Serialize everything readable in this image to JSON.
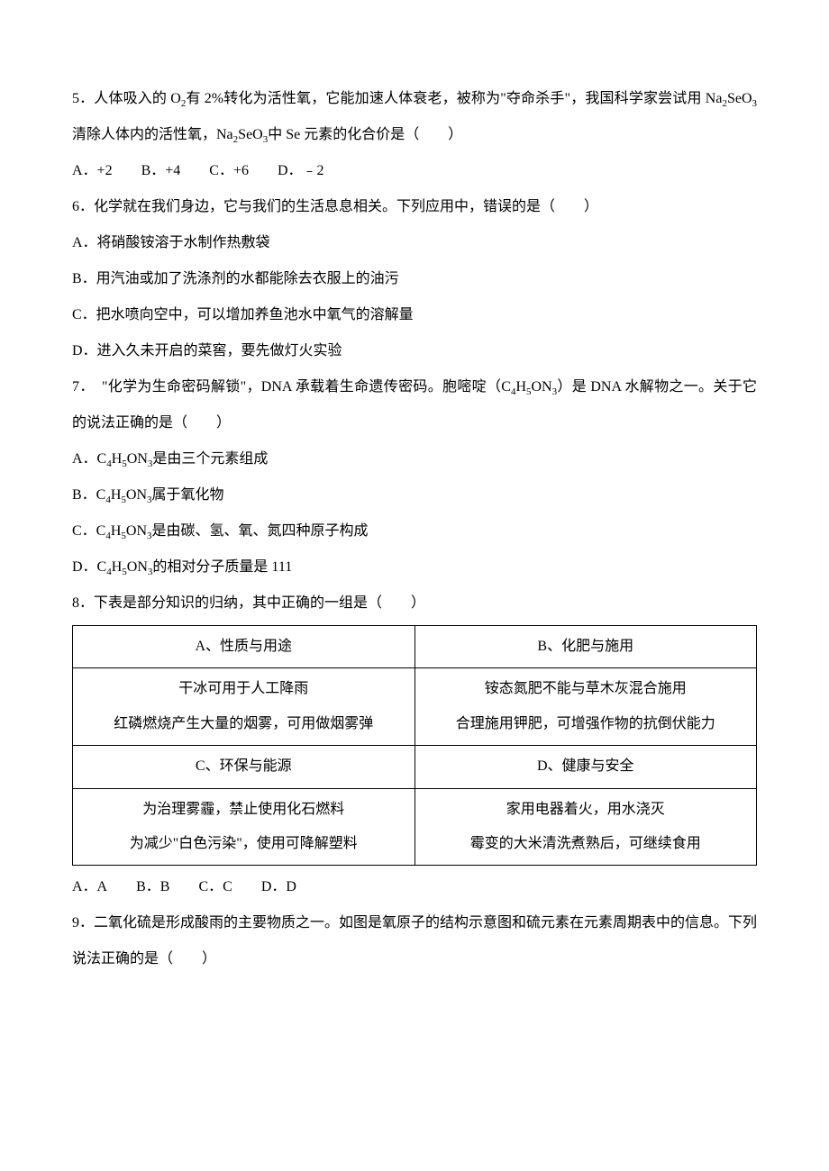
{
  "q5": {
    "text_part1": "5．人体吸入的 O",
    "text_part2": "有 2%转化为活性氧，它能加速人体衰老，被称为\"夺命杀手\"，我国科学家尝试用 Na",
    "text_part3": "SeO",
    "text_part4": "清除人体内的活性氧，Na",
    "text_part5": "SeO",
    "text_part6": "中 Se 元素的化合价是（　　）",
    "opt_a": "A．+2",
    "opt_b": "B．+4",
    "opt_c": "C．+6",
    "opt_d": "D．﹣2"
  },
  "q6": {
    "text": "6．化学就在我们身边，它与我们的生活息息相关。下列应用中，错误的是（　　）",
    "opt_a": "A．将硝酸铵溶于水制作热敷袋",
    "opt_b": "B．用汽油或加了洗涤剂的水都能除去衣服上的油污",
    "opt_c": "C．把水喷向空中，可以增加养鱼池水中氧气的溶解量",
    "opt_d": "D．进入久未开启的菜窖，要先做灯火实验"
  },
  "q7": {
    "text_part1": "7．　\"化学为生命密码解锁\"，DNA 承载着生命遗传密码。胞嘧啶（C",
    "text_part2": "H",
    "text_part3": "ON",
    "text_part4": "）是 DNA 水解物之一。关于它的说法正确的是（　　）",
    "opt_a_pre": "A．C",
    "opt_a_h": "H",
    "opt_a_on": "ON",
    "opt_a_post": "是由三个元素组成",
    "opt_b_pre": "B．C",
    "opt_b_h": "H",
    "opt_b_on": "ON",
    "opt_b_post": "属于氧化物",
    "opt_c_pre": "C．C",
    "opt_c_h": "H",
    "opt_c_on": "ON",
    "opt_c_post": "是由碳、氢、氧、氮四种原子构成",
    "opt_d_pre": "D．C",
    "opt_d_h": "H",
    "opt_d_on": "ON",
    "opt_d_post": "的相对分子质量是 111"
  },
  "q8": {
    "text": "8．下表是部分知识的归纳，其中正确的一组是（　　）",
    "table": {
      "cell_a_header": "A、性质与用途",
      "cell_b_header": "B、化肥与施用",
      "cell_a_line1": "干冰可用于人工降雨",
      "cell_a_line2": "红磷燃烧产生大量的烟雾，可用做烟雾弹",
      "cell_b_line1": "铵态氮肥不能与草木灰混合施用",
      "cell_b_line2": "合理施用钾肥，可增强作物的抗倒伏能力",
      "cell_c_header": "C、环保与能源",
      "cell_d_header": "D、健康与安全",
      "cell_c_line1": "为治理雾霾，禁止使用化石燃料",
      "cell_c_line2": "为减少\"白色污染\"，使用可降解塑料",
      "cell_d_line1": "家用电器着火，用水浇灭",
      "cell_d_line2": "霉变的大米清洗煮熟后，可继续食用"
    },
    "opt_a": "A．A",
    "opt_b": "B．B",
    "opt_c": "C．C",
    "opt_d": "D．D"
  },
  "q9": {
    "text": "9．二氧化硫是形成酸雨的主要物质之一。如图是氧原子的结构示意图和硫元素在元素周期表中的信息。下列说法正确的是（　　）"
  },
  "sub": {
    "s2": "2",
    "s3": "3",
    "s4": "4",
    "s5": "5"
  }
}
